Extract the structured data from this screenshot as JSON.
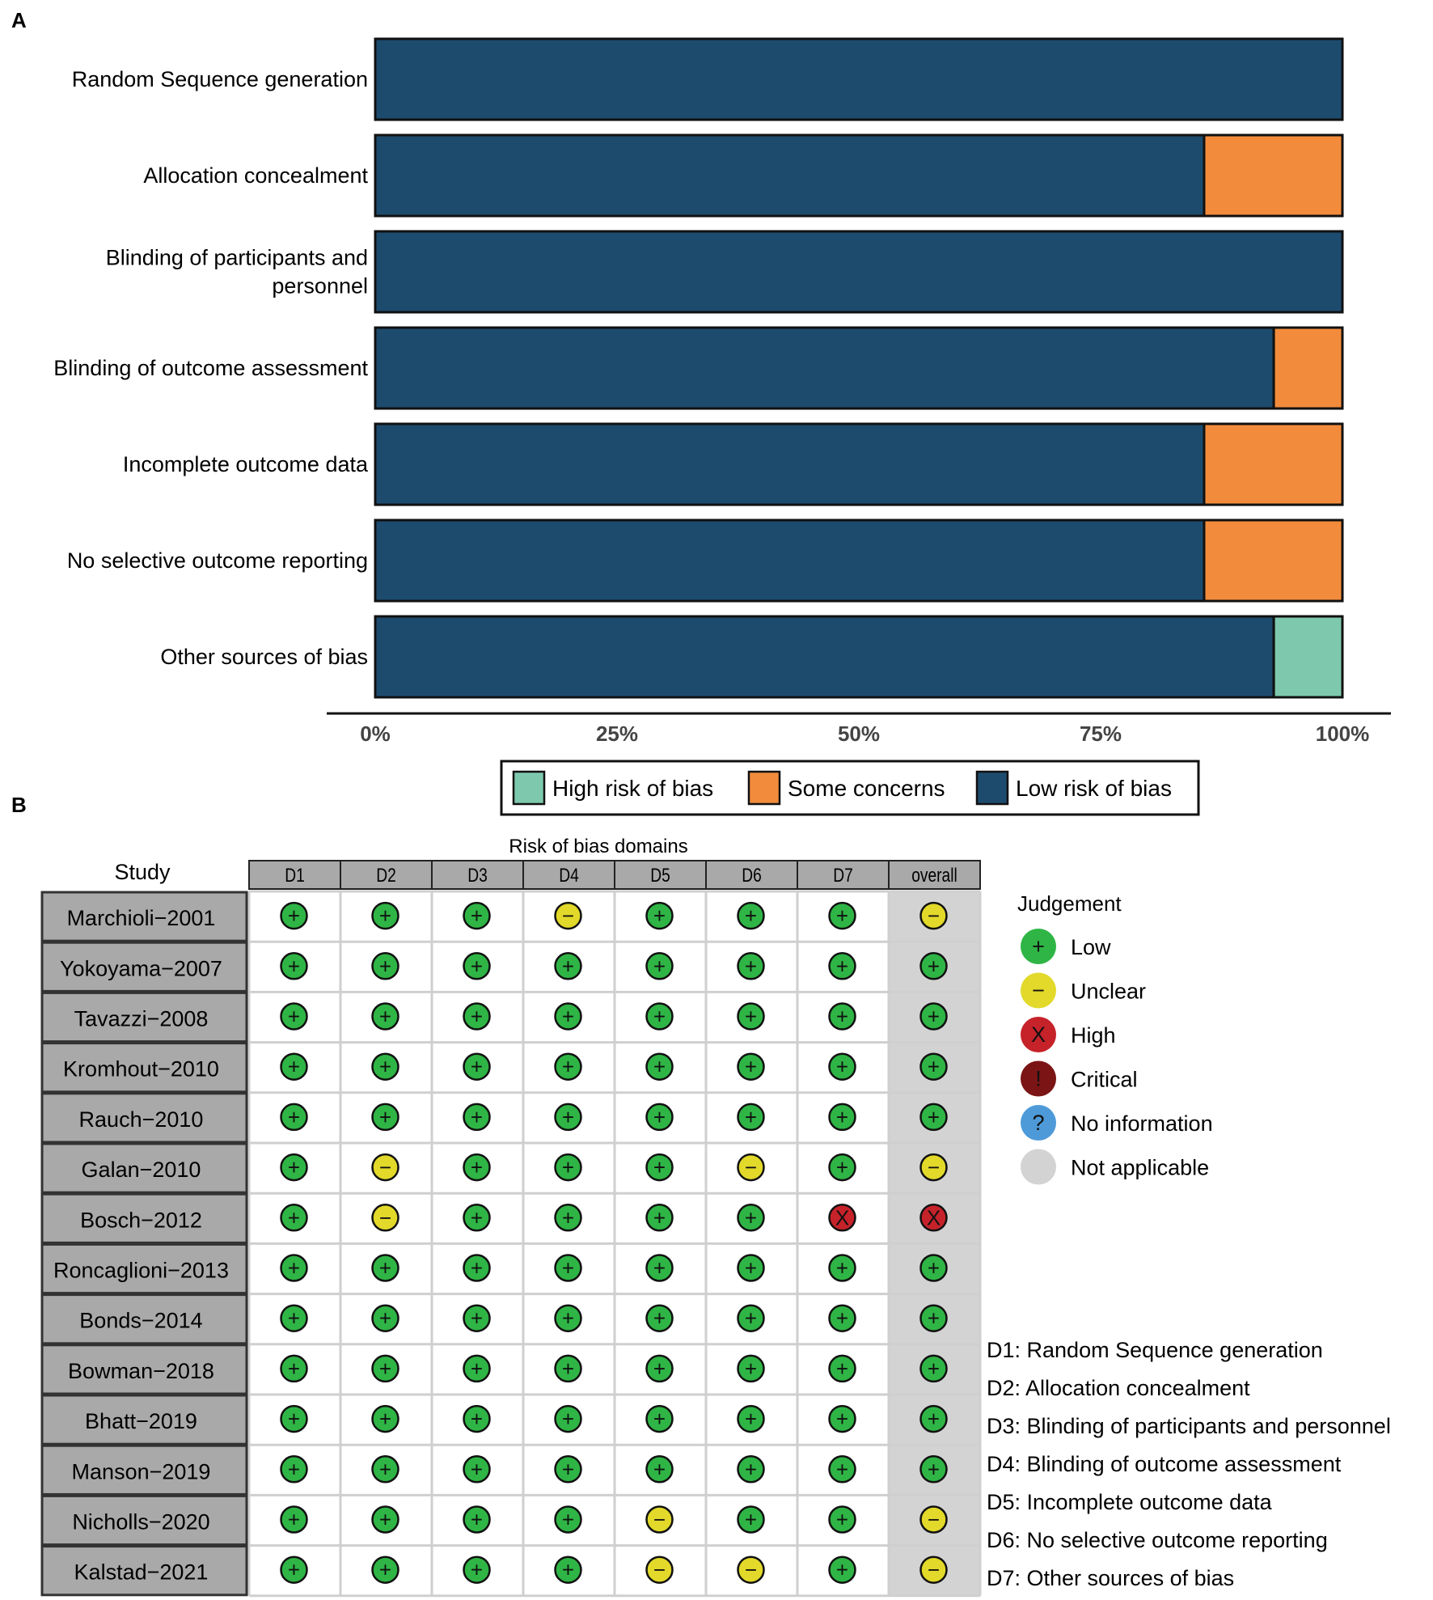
{
  "colors": {
    "low": "#1d4b6e",
    "some": "#f28c3c",
    "high_bar": "#7ec9ad",
    "j_low": "#2fb545",
    "j_unclear": "#e2d92a",
    "j_high": "#c6222a",
    "j_critical": "#7b1414",
    "j_noinfo": "#4e9ad9",
    "j_na": "#d3d3d3",
    "header_fill": "#a9a9a9",
    "study_fill": "#a9a9a9",
    "overall_fill": "#d3d3d3"
  },
  "panel_labels": {
    "a": "A",
    "b": "B"
  },
  "chart_data": [
    {
      "type": "bar",
      "orientation": "horizontal-stacked",
      "categories": [
        "Random Sequence generation",
        "Allocation concealment",
        "Blinding of participants and personnel",
        "Blinding of outcome assessment",
        "Incomplete outcome data",
        "No selective outcome reporting",
        "Other sources of bias"
      ],
      "category_lines": [
        [
          "Random Sequence generation"
        ],
        [
          "Allocation concealment"
        ],
        [
          "Blinding of participants and",
          "personnel"
        ],
        [
          "Blinding of outcome assessment"
        ],
        [
          "Incomplete outcome data"
        ],
        [
          "No selective outcome reporting"
        ],
        [
          "Other sources of bias"
        ]
      ],
      "series": [
        {
          "name": "Low risk of bias",
          "color_key": "low",
          "values": [
            100,
            85.7,
            100,
            92.9,
            85.7,
            85.7,
            92.9
          ]
        },
        {
          "name": "Some concerns",
          "color_key": "some",
          "values": [
            0,
            14.3,
            0,
            7.1,
            14.3,
            14.3,
            0
          ]
        },
        {
          "name": "High risk of bias",
          "color_key": "high_bar",
          "values": [
            0,
            0,
            0,
            0,
            0,
            0,
            7.1
          ]
        }
      ],
      "xlim": [
        0,
        100
      ],
      "xticks": [
        "0%",
        "25%",
        "50%",
        "75%",
        "100%"
      ],
      "legend": {
        "position": "bottom",
        "items": [
          {
            "label": "High risk of bias",
            "color_key": "high_bar"
          },
          {
            "label": "Some concerns",
            "color_key": "some"
          },
          {
            "label": "Low risk of bias",
            "color_key": "low"
          }
        ]
      }
    },
    {
      "type": "table",
      "title": "Risk of bias domains",
      "row_header": "Study",
      "columns": [
        "D1",
        "D2",
        "D3",
        "D4",
        "D5",
        "D6",
        "D7",
        "overall"
      ],
      "rows": [
        {
          "study": "Marchioli−2001",
          "j": [
            "L",
            "L",
            "L",
            "U",
            "L",
            "L",
            "L",
            "U"
          ]
        },
        {
          "study": "Yokoyama−2007",
          "j": [
            "L",
            "L",
            "L",
            "L",
            "L",
            "L",
            "L",
            "L"
          ]
        },
        {
          "study": "Tavazzi−2008",
          "j": [
            "L",
            "L",
            "L",
            "L",
            "L",
            "L",
            "L",
            "L"
          ]
        },
        {
          "study": "Kromhout−2010",
          "j": [
            "L",
            "L",
            "L",
            "L",
            "L",
            "L",
            "L",
            "L"
          ]
        },
        {
          "study": "Rauch−2010",
          "j": [
            "L",
            "L",
            "L",
            "L",
            "L",
            "L",
            "L",
            "L"
          ]
        },
        {
          "study": "Galan−2010",
          "j": [
            "L",
            "U",
            "L",
            "L",
            "L",
            "U",
            "L",
            "U"
          ]
        },
        {
          "study": "Bosch−2012",
          "j": [
            "L",
            "U",
            "L",
            "L",
            "L",
            "L",
            "H",
            "H"
          ]
        },
        {
          "study": "Roncaglioni−2013",
          "j": [
            "L",
            "L",
            "L",
            "L",
            "L",
            "L",
            "L",
            "L"
          ]
        },
        {
          "study": "Bonds−2014",
          "j": [
            "L",
            "L",
            "L",
            "L",
            "L",
            "L",
            "L",
            "L"
          ]
        },
        {
          "study": "Bowman−2018",
          "j": [
            "L",
            "L",
            "L",
            "L",
            "L",
            "L",
            "L",
            "L"
          ]
        },
        {
          "study": "Bhatt−2019",
          "j": [
            "L",
            "L",
            "L",
            "L",
            "L",
            "L",
            "L",
            "L"
          ]
        },
        {
          "study": "Manson−2019",
          "j": [
            "L",
            "L",
            "L",
            "L",
            "L",
            "L",
            "L",
            "L"
          ]
        },
        {
          "study": "Nicholls−2020",
          "j": [
            "L",
            "L",
            "L",
            "L",
            "U",
            "L",
            "L",
            "U"
          ]
        },
        {
          "study": "Kalstad−2021",
          "j": [
            "L",
            "L",
            "L",
            "L",
            "U",
            "U",
            "L",
            "U"
          ]
        }
      ],
      "judgement_legend": {
        "title": "Judgement",
        "items": [
          {
            "code": "L",
            "label": "Low",
            "symbol": "+",
            "color_key": "j_low"
          },
          {
            "code": "U",
            "label": "Unclear",
            "symbol": "−",
            "color_key": "j_unclear"
          },
          {
            "code": "H",
            "label": "High",
            "symbol": "X",
            "color_key": "j_high"
          },
          {
            "code": "C",
            "label": "Critical",
            "symbol": "!",
            "color_key": "j_critical"
          },
          {
            "code": "N",
            "label": "No information",
            "symbol": "?",
            "color_key": "j_noinfo"
          },
          {
            "code": "NA",
            "label": "Not applicable",
            "symbol": "",
            "color_key": "j_na"
          }
        ]
      },
      "domain_definitions": [
        "D1: Random Sequence generation",
        "D2: Allocation concealment",
        "D3: Blinding of participants and personnel",
        "D4: Blinding of outcome assessment",
        "D5: Incomplete outcome data",
        "D6: No selective outcome reporting",
        "D7: Other sources of bias"
      ]
    }
  ]
}
